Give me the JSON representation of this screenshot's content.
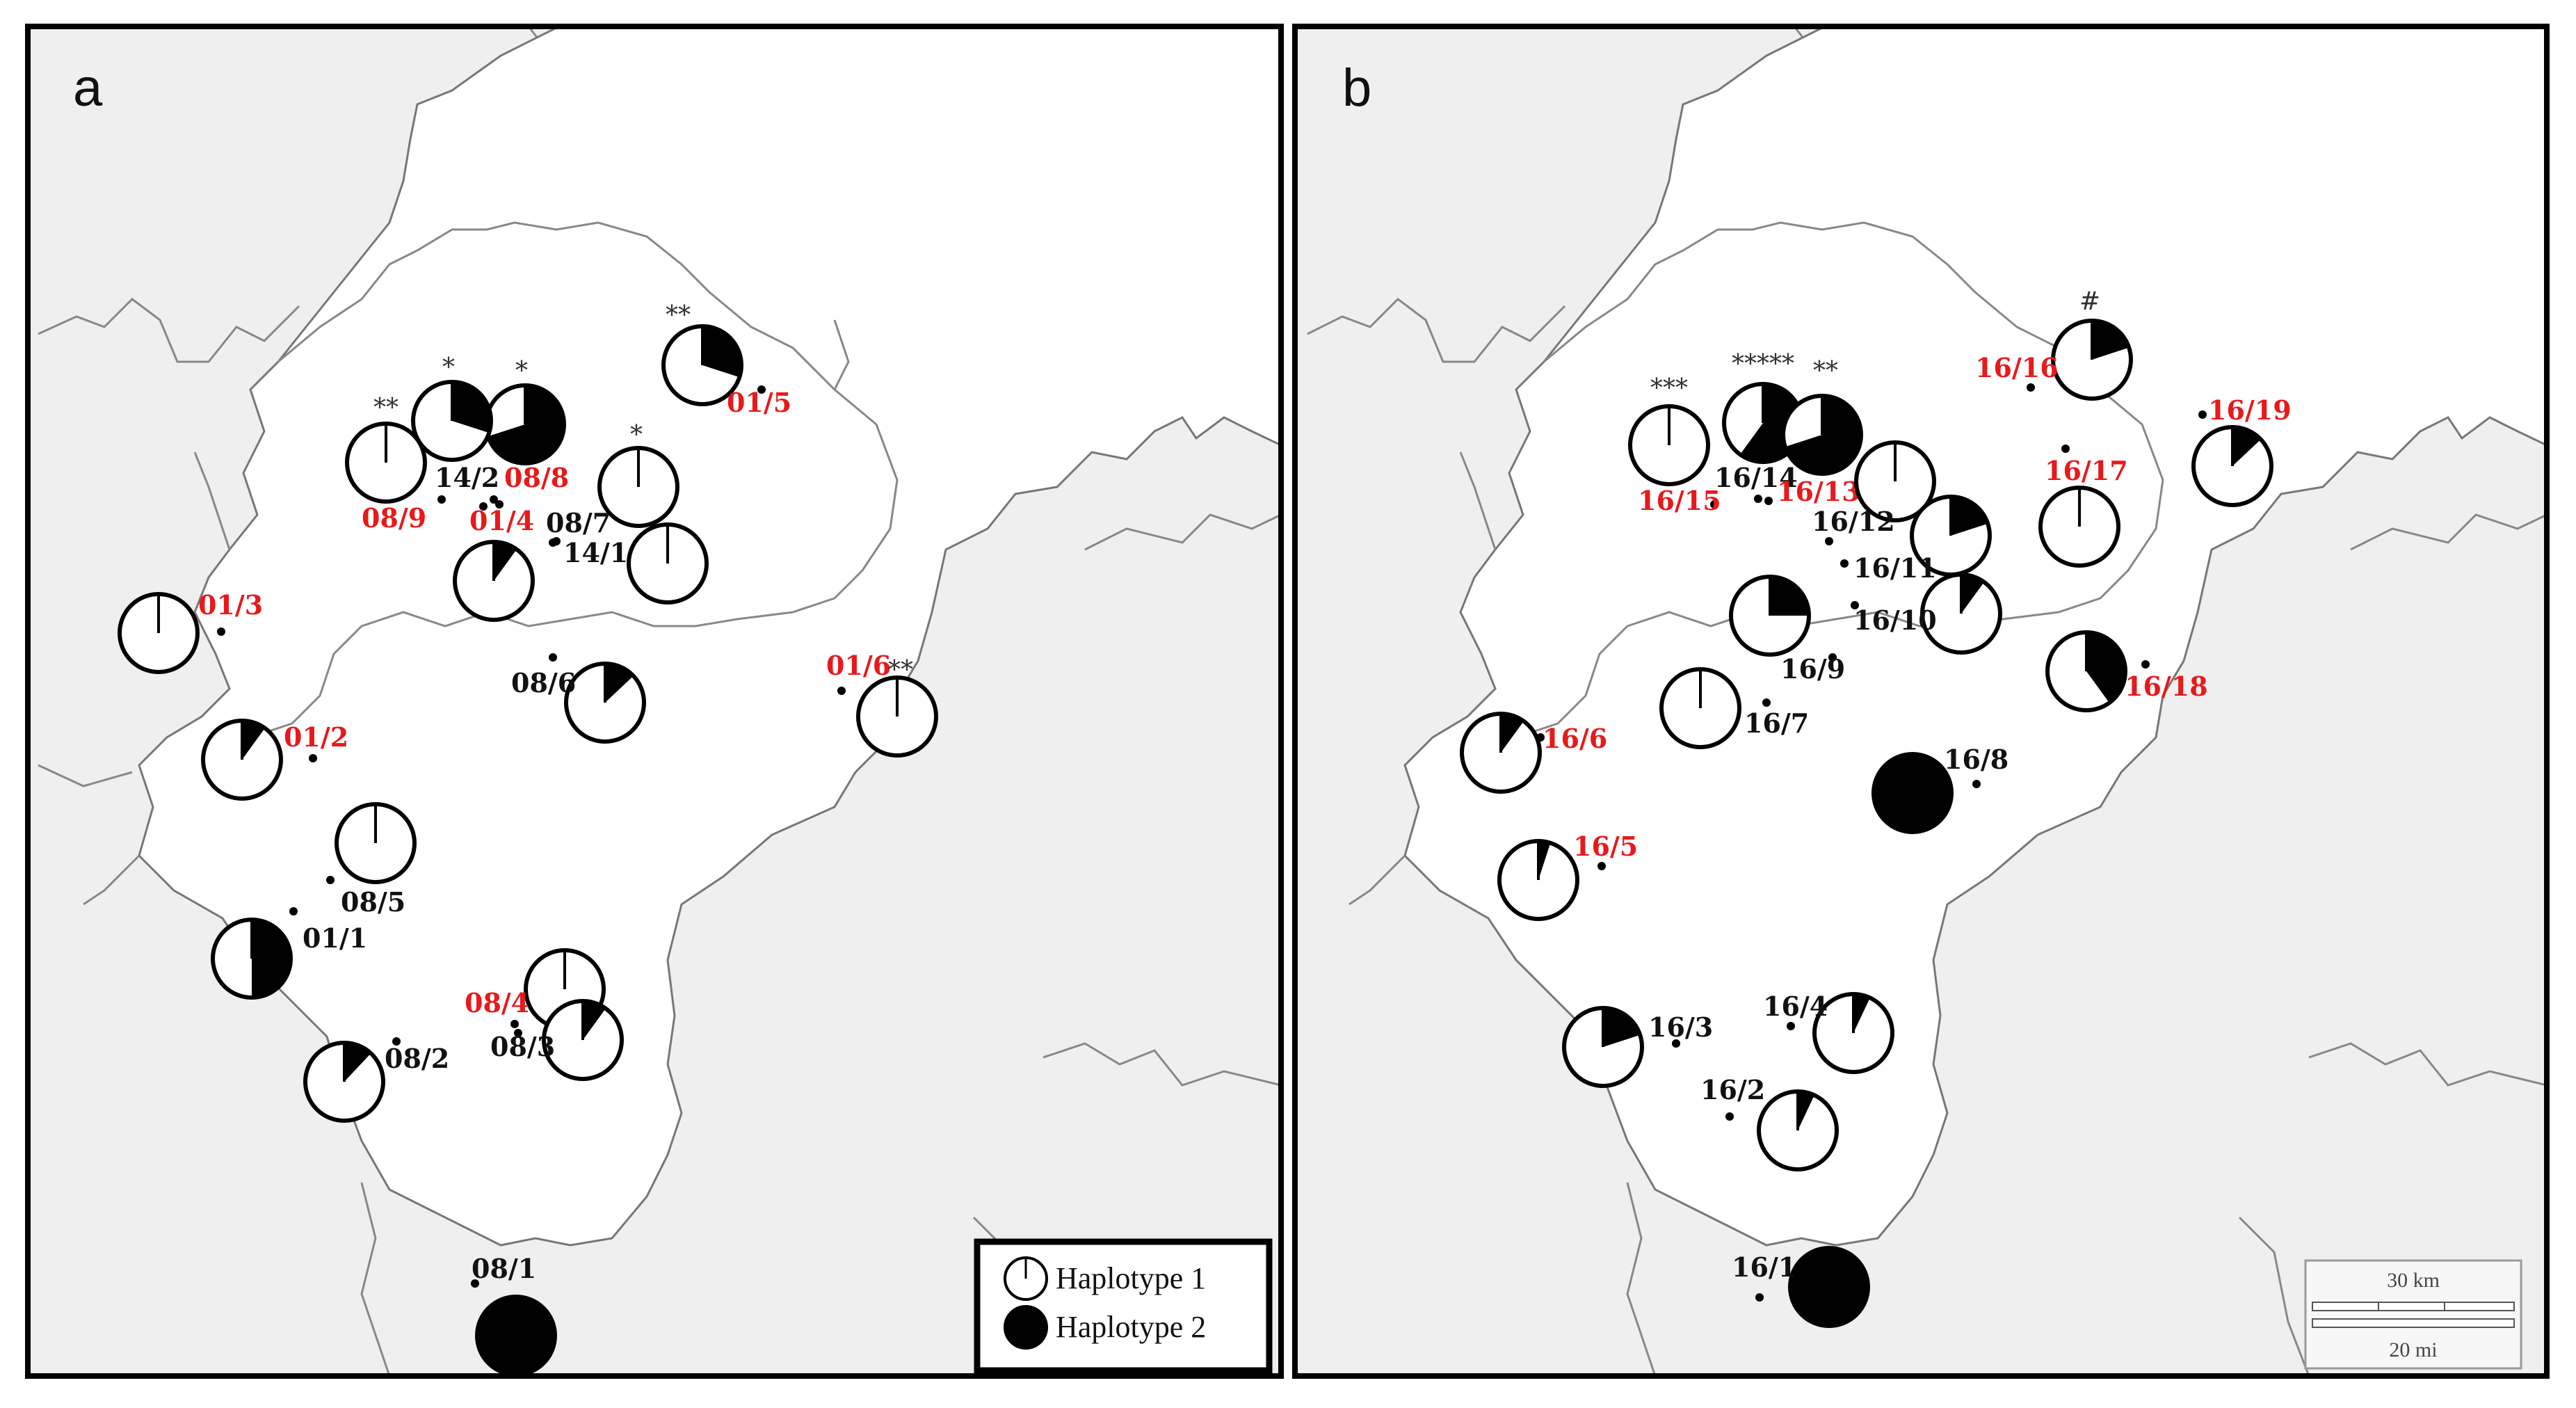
{
  "colors": {
    "haplotype1": "#ffffff",
    "haplotype2": "#000000",
    "highlight_label": "#e8191b",
    "normal_label": "#111111",
    "outside_area": "#efefef",
    "border": "#888888"
  },
  "panels": [
    {
      "letter": "a",
      "sites": [
        {
          "label": "01/5",
          "red": true,
          "h2": 0.3,
          "mark": "**"
        },
        {
          "label": "08/8",
          "red": true,
          "h2": 0.7,
          "mark": "*"
        },
        {
          "label": "14/2",
          "red": false,
          "h2": 0.3,
          "mark": "*"
        },
        {
          "label": "08/9",
          "red": true,
          "h2": 0.0,
          "mark": "**"
        },
        {
          "label": "08/7",
          "red": false,
          "h2": 0.0,
          "mark": "*"
        },
        {
          "label": "14/1",
          "red": false,
          "h2": 0.0,
          "mark": ""
        },
        {
          "label": "01/4",
          "red": true,
          "h2": 0.1,
          "mark": ""
        },
        {
          "label": "01/3",
          "red": true,
          "h2": 0.0,
          "mark": ""
        },
        {
          "label": "08/6",
          "red": false,
          "h2": 0.13,
          "mark": ""
        },
        {
          "label": "01/6",
          "red": true,
          "h2": 0.0,
          "mark": "**"
        },
        {
          "label": "01/2",
          "red": true,
          "h2": 0.1,
          "mark": ""
        },
        {
          "label": "08/5",
          "red": false,
          "h2": 0.0,
          "mark": ""
        },
        {
          "label": "01/1",
          "red": false,
          "h2": 0.5,
          "mark": ""
        },
        {
          "label": "08/4",
          "red": true,
          "h2": 0.0,
          "mark": ""
        },
        {
          "label": "08/3",
          "red": false,
          "h2": 0.1,
          "mark": ""
        },
        {
          "label": "08/2",
          "red": false,
          "h2": 0.12,
          "mark": ""
        },
        {
          "label": "08/1",
          "red": false,
          "h2": 1.0,
          "mark": ""
        }
      ]
    },
    {
      "letter": "b",
      "sites": [
        {
          "label": "16/16",
          "red": true,
          "h2": 0.2,
          "mark": "#"
        },
        {
          "label": "16/19",
          "red": true,
          "h2": 0.13,
          "mark": ""
        },
        {
          "label": "16/15",
          "red": true,
          "h2": 0.0,
          "mark": "***"
        },
        {
          "label": "16/14",
          "red": false,
          "h2": 0.6,
          "mark": "*****"
        },
        {
          "label": "16/13",
          "red": true,
          "h2": 0.7,
          "mark": "**"
        },
        {
          "label": "16/12",
          "red": false,
          "h2": 0.0,
          "mark": ""
        },
        {
          "label": "16/17",
          "red": true,
          "h2": 0.0,
          "mark": ""
        },
        {
          "label": "16/11",
          "red": false,
          "h2": 0.2,
          "mark": ""
        },
        {
          "label": "16/10",
          "red": false,
          "h2": 0.1,
          "mark": ""
        },
        {
          "label": "16/9",
          "red": false,
          "h2": 0.25,
          "mark": ""
        },
        {
          "label": "16/18",
          "red": true,
          "h2": 0.4,
          "mark": ""
        },
        {
          "label": "16/7",
          "red": false,
          "h2": 0.0,
          "mark": ""
        },
        {
          "label": "16/6",
          "red": true,
          "h2": 0.1,
          "mark": ""
        },
        {
          "label": "16/8",
          "red": false,
          "h2": 1.0,
          "mark": ""
        },
        {
          "label": "16/5",
          "red": true,
          "h2": 0.05,
          "mark": ""
        },
        {
          "label": "16/3",
          "red": false,
          "h2": 0.2,
          "mark": ""
        },
        {
          "label": "16/4",
          "red": false,
          "h2": 0.07,
          "mark": ""
        },
        {
          "label": "16/2",
          "red": false,
          "h2": 0.07,
          "mark": ""
        },
        {
          "label": "16/1",
          "red": false,
          "h2": 1.0,
          "mark": ""
        }
      ]
    }
  ],
  "legend": {
    "items": [
      {
        "label": "Haplotype 1",
        "h2": 0.0
      },
      {
        "label": "Haplotype 2",
        "h2": 1.0
      }
    ]
  },
  "scalebar": {
    "km_label": "30 km",
    "mi_label": "20 mi"
  }
}
